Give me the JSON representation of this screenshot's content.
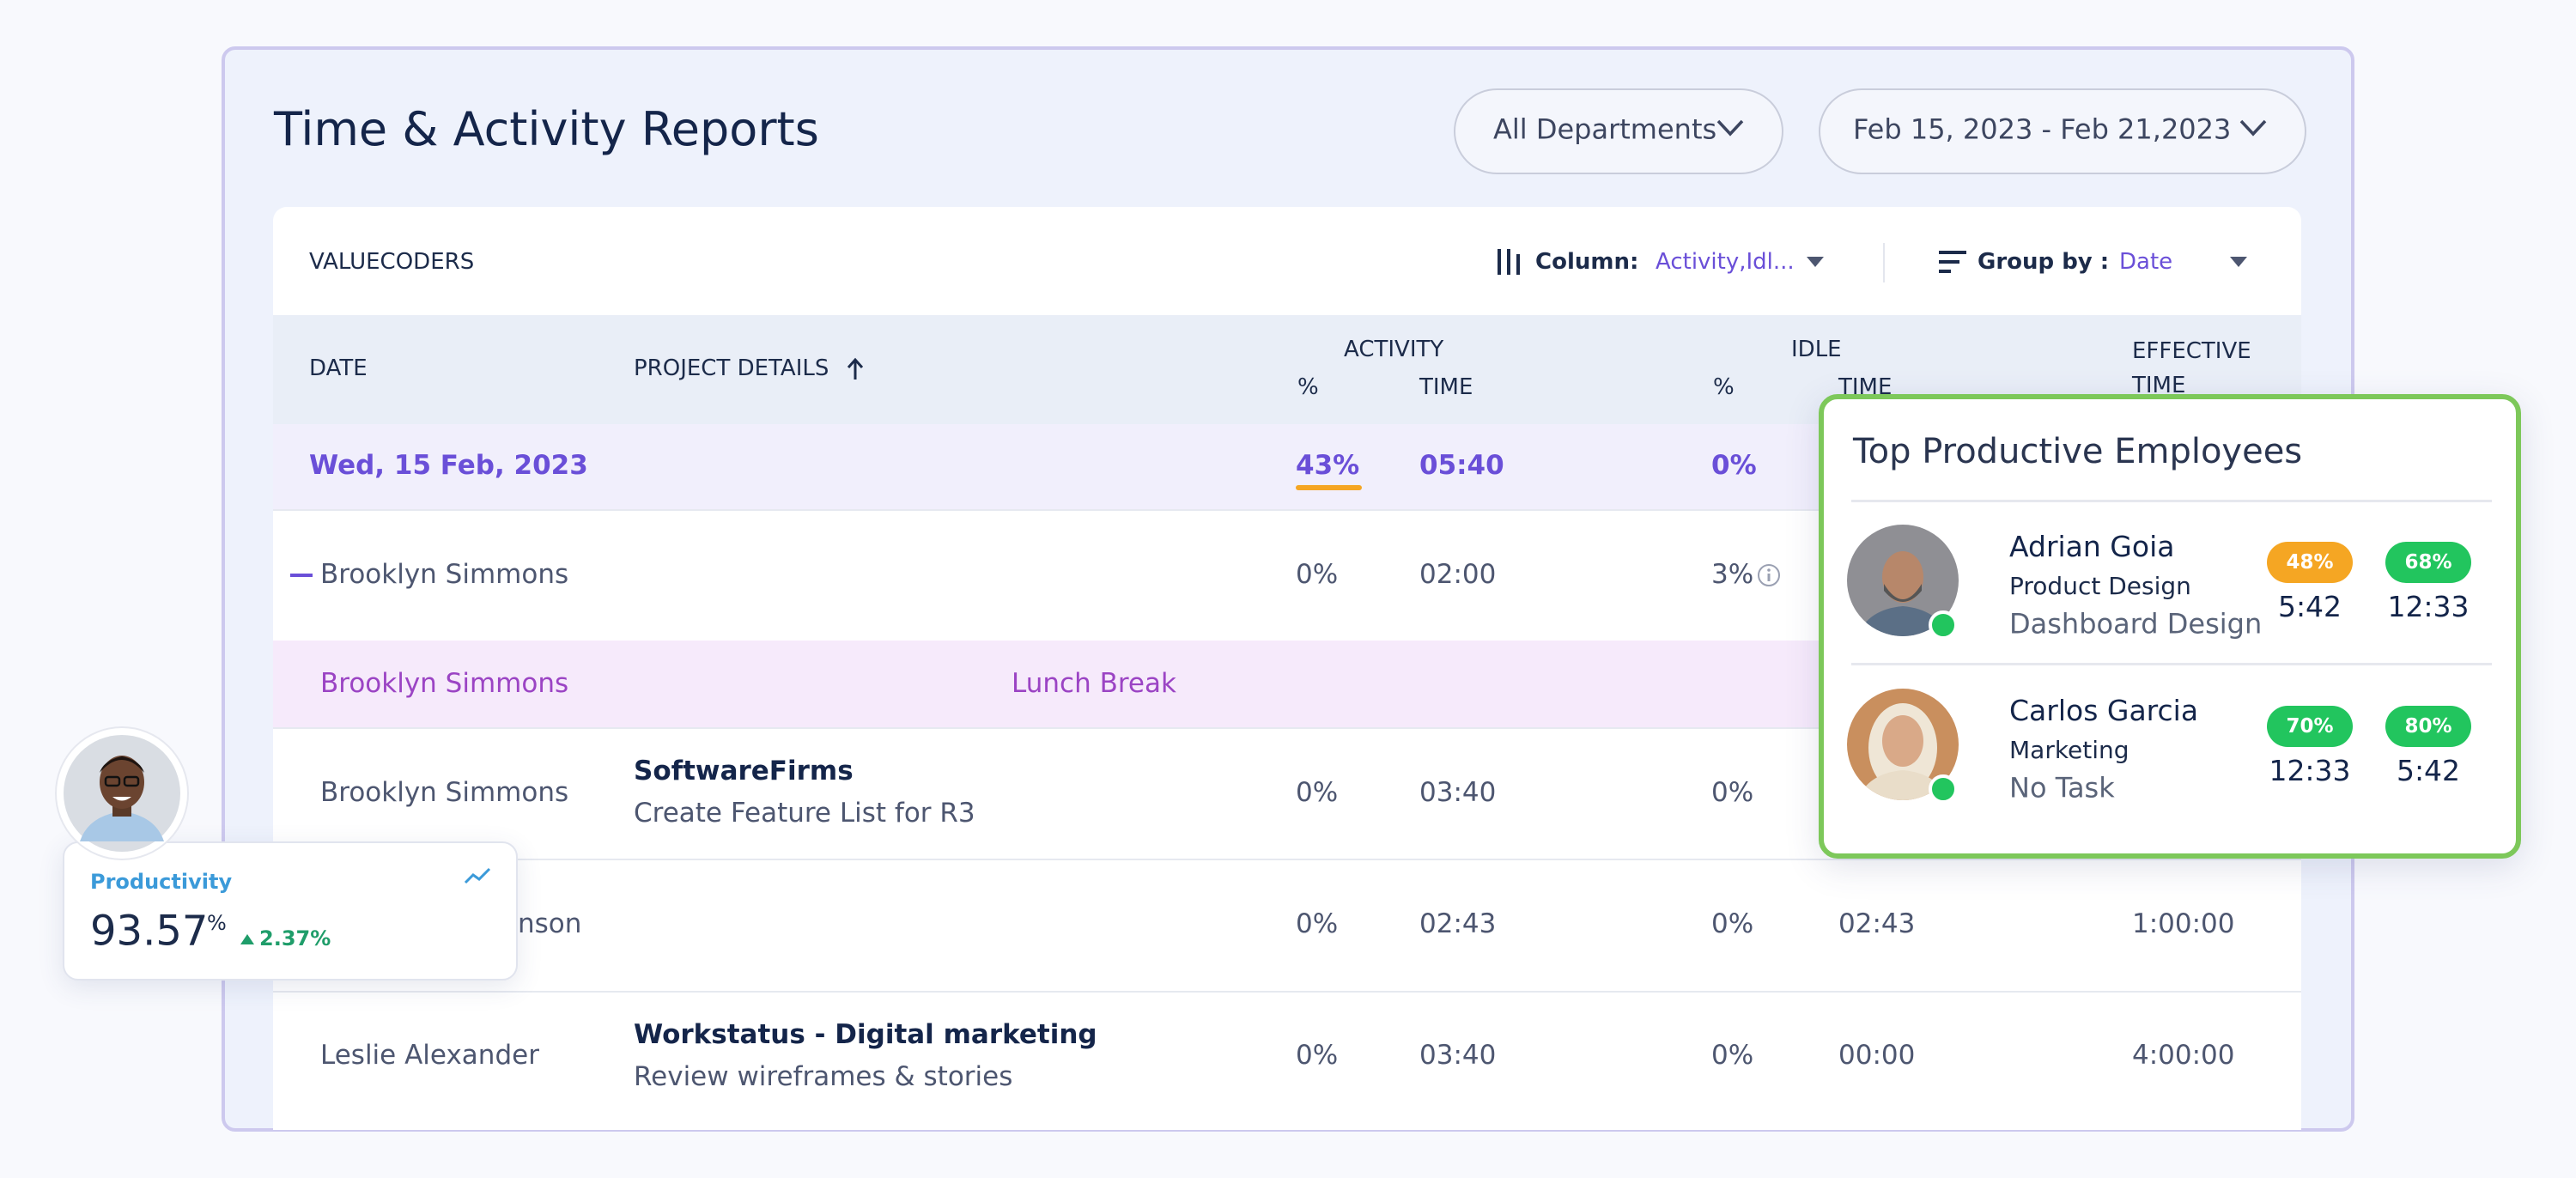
{
  "header": {
    "title": "Time & Activity Reports",
    "department_filter": "All Departments",
    "date_range": "Feb 15, 2023 - Feb 21,2023"
  },
  "toolbar": {
    "company": "VALUECODERS",
    "column_label": "Column:",
    "column_value": "Activity,Idl...",
    "group_label": "Group by :",
    "group_value": "Date"
  },
  "table": {
    "headers": {
      "date": "DATE",
      "project": "PROJECT DETAILS",
      "activity": "ACTIVITY",
      "activity_pct": "%",
      "activity_time": "TIME",
      "idle": "IDLE",
      "idle_pct": "%",
      "idle_time": "TIME",
      "effective_1": "EFFECTIVE",
      "effective_2": "TIME"
    },
    "group": {
      "date": "Wed, 15 Feb, 2023",
      "activity_pct": "43%",
      "activity_time": "05:40",
      "idle_pct": "0%"
    },
    "rows": [
      {
        "name": "Brooklyn Simmons",
        "activity_pct": "0%",
        "activity_time": "02:00",
        "idle_pct": "3%"
      },
      {
        "name": "Brooklyn Simmons",
        "note": "Lunch Break"
      },
      {
        "name": "Brooklyn Simmons",
        "project": "SoftwareFirms",
        "task": "Create Feature List for R3",
        "activity_pct": "0%",
        "activity_time": "03:40",
        "idle_pct": "0%"
      },
      {
        "name": "nson",
        "activity_pct": "0%",
        "activity_time": "02:43",
        "idle_pct": "0%",
        "idle_time": "02:43",
        "effective": "1:00:00"
      },
      {
        "name": "Leslie Alexander",
        "project": "Workstatus - Digital marketing",
        "task": "Review wireframes & stories",
        "activity_pct": "0%",
        "activity_time": "03:40",
        "idle_pct": "0%",
        "idle_time": "00:00",
        "effective": "4:00:00"
      }
    ]
  },
  "top_employees": {
    "title": "Top Productive Employees",
    "employees": [
      {
        "name": "Adrian Goia",
        "department": "Product Design",
        "task": "Dashboard Design",
        "badge_1": "48%",
        "time_1": "5:42",
        "badge_2": "68%",
        "time_2": "12:33"
      },
      {
        "name": "Carlos Garcia",
        "department": "Marketing",
        "task": "No Task",
        "badge_1": "70%",
        "time_1": "12:33",
        "badge_2": "80%",
        "time_2": "5:42"
      }
    ]
  },
  "productivity": {
    "label": "Productivity",
    "value": "93.57",
    "unit": "%",
    "change": "2.37%"
  }
}
